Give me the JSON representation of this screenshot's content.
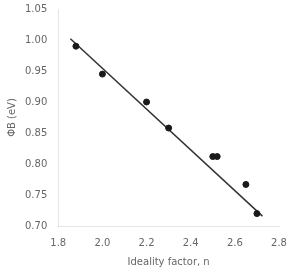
{
  "chart_data": {
    "type": "scatter",
    "xlabel": "Ideality factor, n",
    "ylabel": "ΦB (eV)",
    "series": [
      {
        "type": "line",
        "color": "#333333",
        "x": [
          1.855,
          2.725
        ],
        "values": [
          1.002,
          0.716
        ]
      },
      {
        "type": "scatter",
        "color": "#1a1a1a",
        "x": [
          1.88,
          2.0,
          2.2,
          2.3,
          2.5,
          2.52,
          2.65,
          2.7
        ],
        "values": [
          0.99,
          0.945,
          0.9,
          0.858,
          0.812,
          0.812,
          0.767,
          0.72
        ]
      }
    ],
    "xlim": [
      1.8,
      2.8
    ],
    "xticks": [
      1.8,
      {
        "value": 2.0,
        "label": "2.0"
      },
      2.2,
      2.4,
      2.6,
      2.8
    ],
    "ylim": [
      0.7,
      1.05
    ],
    "yticks": [
      {
        "value": 0.7,
        "label": "0.70"
      },
      0.75,
      {
        "value": 0.8,
        "label": "0.80"
      },
      0.85,
      {
        "value": 0.9,
        "label": "0.90"
      },
      0.95,
      {
        "value": 1.0,
        "label": "1.00"
      },
      1.05
    ],
    "grid": false
  }
}
